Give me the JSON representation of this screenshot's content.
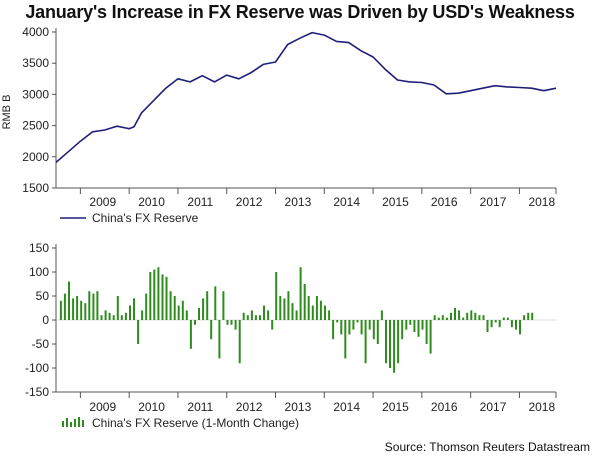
{
  "title": "January's Increase in FX Reserve was Driven by USD's Weakness",
  "source": "Source: Thomson Reuters Datastream",
  "colors": {
    "line": "#1f1f7a",
    "bar": "#2e8b1e",
    "axis": "#555555"
  },
  "chart_data": [
    {
      "type": "line",
      "ylabel": "RMB B",
      "ylim": [
        1500,
        4000
      ],
      "yticks": [
        1500,
        2000,
        2500,
        3000,
        3500,
        4000
      ],
      "xlim": [
        2008.5,
        2018.75
      ],
      "xticks": [
        "2009",
        "2010",
        "2011",
        "2012",
        "2013",
        "2014",
        "2015",
        "2016",
        "2017",
        "2018"
      ],
      "legend": "China's FX Reserve",
      "legend_position": "bottom-left",
      "series": [
        {
          "name": "China's FX Reserve",
          "x": [
            2008.5,
            2008.75,
            2009.0,
            2009.25,
            2009.5,
            2009.75,
            2010.0,
            2010.1,
            2010.25,
            2010.5,
            2010.75,
            2011.0,
            2011.25,
            2011.5,
            2011.75,
            2012.0,
            2012.25,
            2012.5,
            2012.75,
            2013.0,
            2013.25,
            2013.5,
            2013.75,
            2014.0,
            2014.25,
            2014.5,
            2014.75,
            2015.0,
            2015.25,
            2015.5,
            2015.75,
            2016.0,
            2016.25,
            2016.5,
            2016.75,
            2017.0,
            2017.25,
            2017.5,
            2017.75,
            2018.0,
            2018.25,
            2018.5,
            2018.75
          ],
          "values": [
            1910,
            2080,
            2250,
            2400,
            2430,
            2490,
            2450,
            2480,
            2700,
            2900,
            3100,
            3250,
            3200,
            3300,
            3200,
            3310,
            3250,
            3350,
            3480,
            3520,
            3800,
            3900,
            3990,
            3950,
            3850,
            3830,
            3700,
            3600,
            3400,
            3230,
            3200,
            3190,
            3150,
            3010,
            3020,
            3060,
            3100,
            3140,
            3120,
            3110,
            3100,
            3060,
            3100
          ]
        }
      ]
    },
    {
      "type": "bar",
      "ylim": [
        -150,
        150
      ],
      "yticks": [
        -150,
        -100,
        -50,
        0,
        50,
        100,
        150
      ],
      "xlim": [
        2008.5,
        2018.75
      ],
      "xticks": [
        "2009",
        "2010",
        "2011",
        "2012",
        "2013",
        "2014",
        "2015",
        "2016",
        "2017",
        "2018"
      ],
      "legend": "China's FX Reserve (1-Month Change)",
      "legend_position": "bottom-left",
      "series": [
        {
          "name": "China's FX Reserve (1-Month Change)",
          "start": 2008.6,
          "step": 0.0833,
          "values": [
            40,
            55,
            80,
            45,
            50,
            40,
            35,
            60,
            55,
            60,
            10,
            20,
            15,
            10,
            50,
            10,
            15,
            30,
            45,
            -50,
            20,
            55,
            100,
            105,
            110,
            95,
            90,
            60,
            50,
            30,
            40,
            20,
            -60,
            -10,
            25,
            45,
            60,
            -40,
            70,
            -80,
            60,
            -10,
            -10,
            -20,
            -90,
            15,
            10,
            20,
            10,
            10,
            30,
            20,
            -20,
            100,
            50,
            45,
            60,
            35,
            20,
            110,
            75,
            50,
            30,
            50,
            40,
            30,
            20,
            -40,
            -5,
            -30,
            -80,
            -30,
            -20,
            -5,
            -30,
            -90,
            -20,
            -40,
            -50,
            20,
            -90,
            -100,
            -110,
            -90,
            -40,
            -20,
            -10,
            -25,
            -35,
            -20,
            -50,
            -70,
            10,
            5,
            10,
            5,
            15,
            25,
            20,
            5,
            15,
            20,
            15,
            10,
            10,
            -25,
            -15,
            -5,
            -15,
            5,
            5,
            -15,
            -20,
            -30,
            10,
            15,
            15
          ]
        }
      ]
    }
  ]
}
